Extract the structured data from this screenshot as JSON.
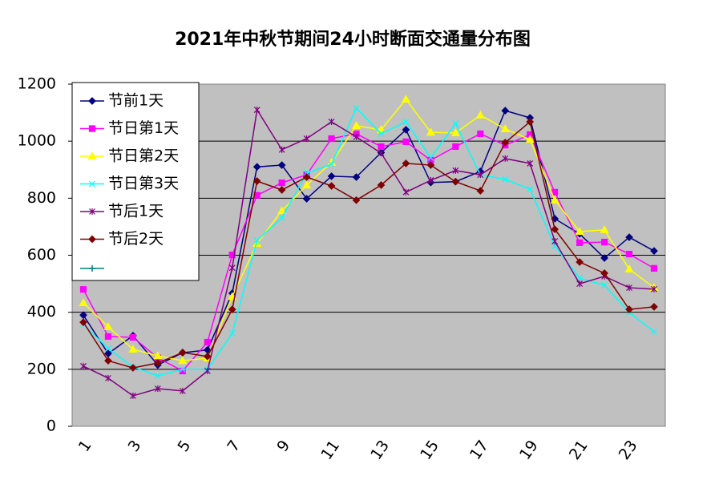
{
  "chart_data": {
    "type": "line",
    "title": "2021年中秋节期间24小时断面交通量分布图",
    "categories": [
      1,
      null,
      3,
      null,
      5,
      null,
      7,
      null,
      9,
      null,
      11,
      null,
      13,
      null,
      15,
      null,
      17,
      null,
      19,
      null,
      21,
      null,
      23,
      null
    ],
    "ylim": [
      0,
      1200
    ],
    "yticks": [
      0,
      200,
      400,
      600,
      800,
      1000,
      1200
    ],
    "grid": true,
    "legend": "top-left",
    "series": [
      {
        "name": "节前1天",
        "color": "#000080",
        "marker": "diamond",
        "values": [
          390,
          255,
          318,
          215,
          258,
          268,
          467,
          910,
          916,
          798,
          877,
          874,
          960,
          1040,
          855,
          858,
          894,
          1107,
          1082,
          728,
          675,
          590,
          663,
          615
        ]
      },
      {
        "name": "节日第1天",
        "color": "#ff00ff",
        "marker": "square",
        "values": [
          480,
          315,
          312,
          240,
          194,
          295,
          601,
          810,
          854,
          882,
          1009,
          1026,
          981,
          998,
          933,
          981,
          1026,
          986,
          1023,
          821,
          644,
          646,
          604,
          554
        ]
      },
      {
        "name": "节日第2天",
        "color": "#ffff00",
        "marker": "triangle",
        "values": [
          433,
          349,
          270,
          247,
          230,
          239,
          455,
          641,
          756,
          846,
          925,
          1054,
          1040,
          1147,
          1031,
          1029,
          1091,
          1043,
          1006,
          793,
          683,
          689,
          551,
          486
        ]
      },
      {
        "name": "节日第3天",
        "color": "#00ffff",
        "marker": "x",
        "values": [
          357,
          273,
          208,
          177,
          200,
          200,
          326,
          652,
          731,
          888,
          919,
          1116,
          1026,
          1068,
          942,
          1062,
          882,
          866,
          832,
          632,
          520,
          495,
          399,
          332
        ]
      },
      {
        "name": "节后1天",
        "color": "#800080",
        "marker": "star",
        "values": [
          211,
          169,
          107,
          132,
          124,
          194,
          556,
          1110,
          970,
          1009,
          1068,
          1015,
          958,
          821,
          863,
          897,
          882,
          939,
          922,
          649,
          500,
          526,
          486,
          481
        ]
      },
      {
        "name": "节后2天",
        "color": "#800000",
        "marker": "diamond",
        "values": [
          365,
          230,
          205,
          222,
          259,
          245,
          410,
          860,
          829,
          874,
          843,
          793,
          846,
          922,
          916,
          858,
          826,
          995,
          1068,
          691,
          576,
          537,
          410,
          419
        ]
      }
    ]
  }
}
